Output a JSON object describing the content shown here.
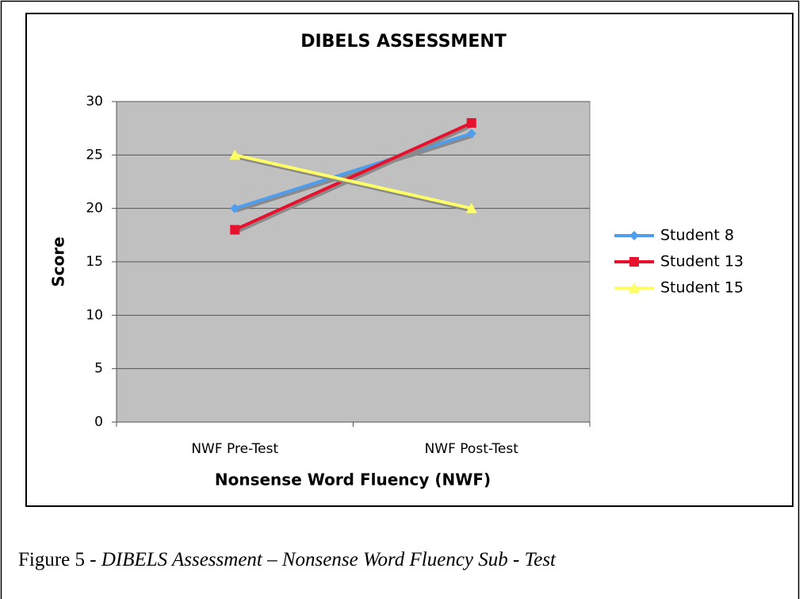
{
  "chart_data": {
    "type": "line",
    "title": "DIBELS ASSESSMENT",
    "x_label": "Nonsense Word Fluency (NWF)",
    "y_label": "Score",
    "categories": [
      "NWF Pre-Test",
      "NWF Post-Test"
    ],
    "series": [
      {
        "name": "Student 8",
        "color": "#4f9ded",
        "marker": "diamond",
        "values": [
          20,
          27
        ]
      },
      {
        "name": "Student 13",
        "color": "#e8112d",
        "marker": "square",
        "values": [
          18,
          28
        ]
      },
      {
        "name": "Student 15",
        "color": "#ffff66",
        "marker": "triangle",
        "values": [
          25,
          20
        ]
      }
    ],
    "ylim": [
      0,
      30
    ],
    "yticks": [
      0,
      5,
      10,
      15,
      20,
      25,
      30
    ],
    "grid": true,
    "legend": "right"
  },
  "caption": [
    "Figure 5 - ",
    "DIBELS Assessment – Nonsense Word Fluency Sub",
    " - ",
    "Test"
  ]
}
